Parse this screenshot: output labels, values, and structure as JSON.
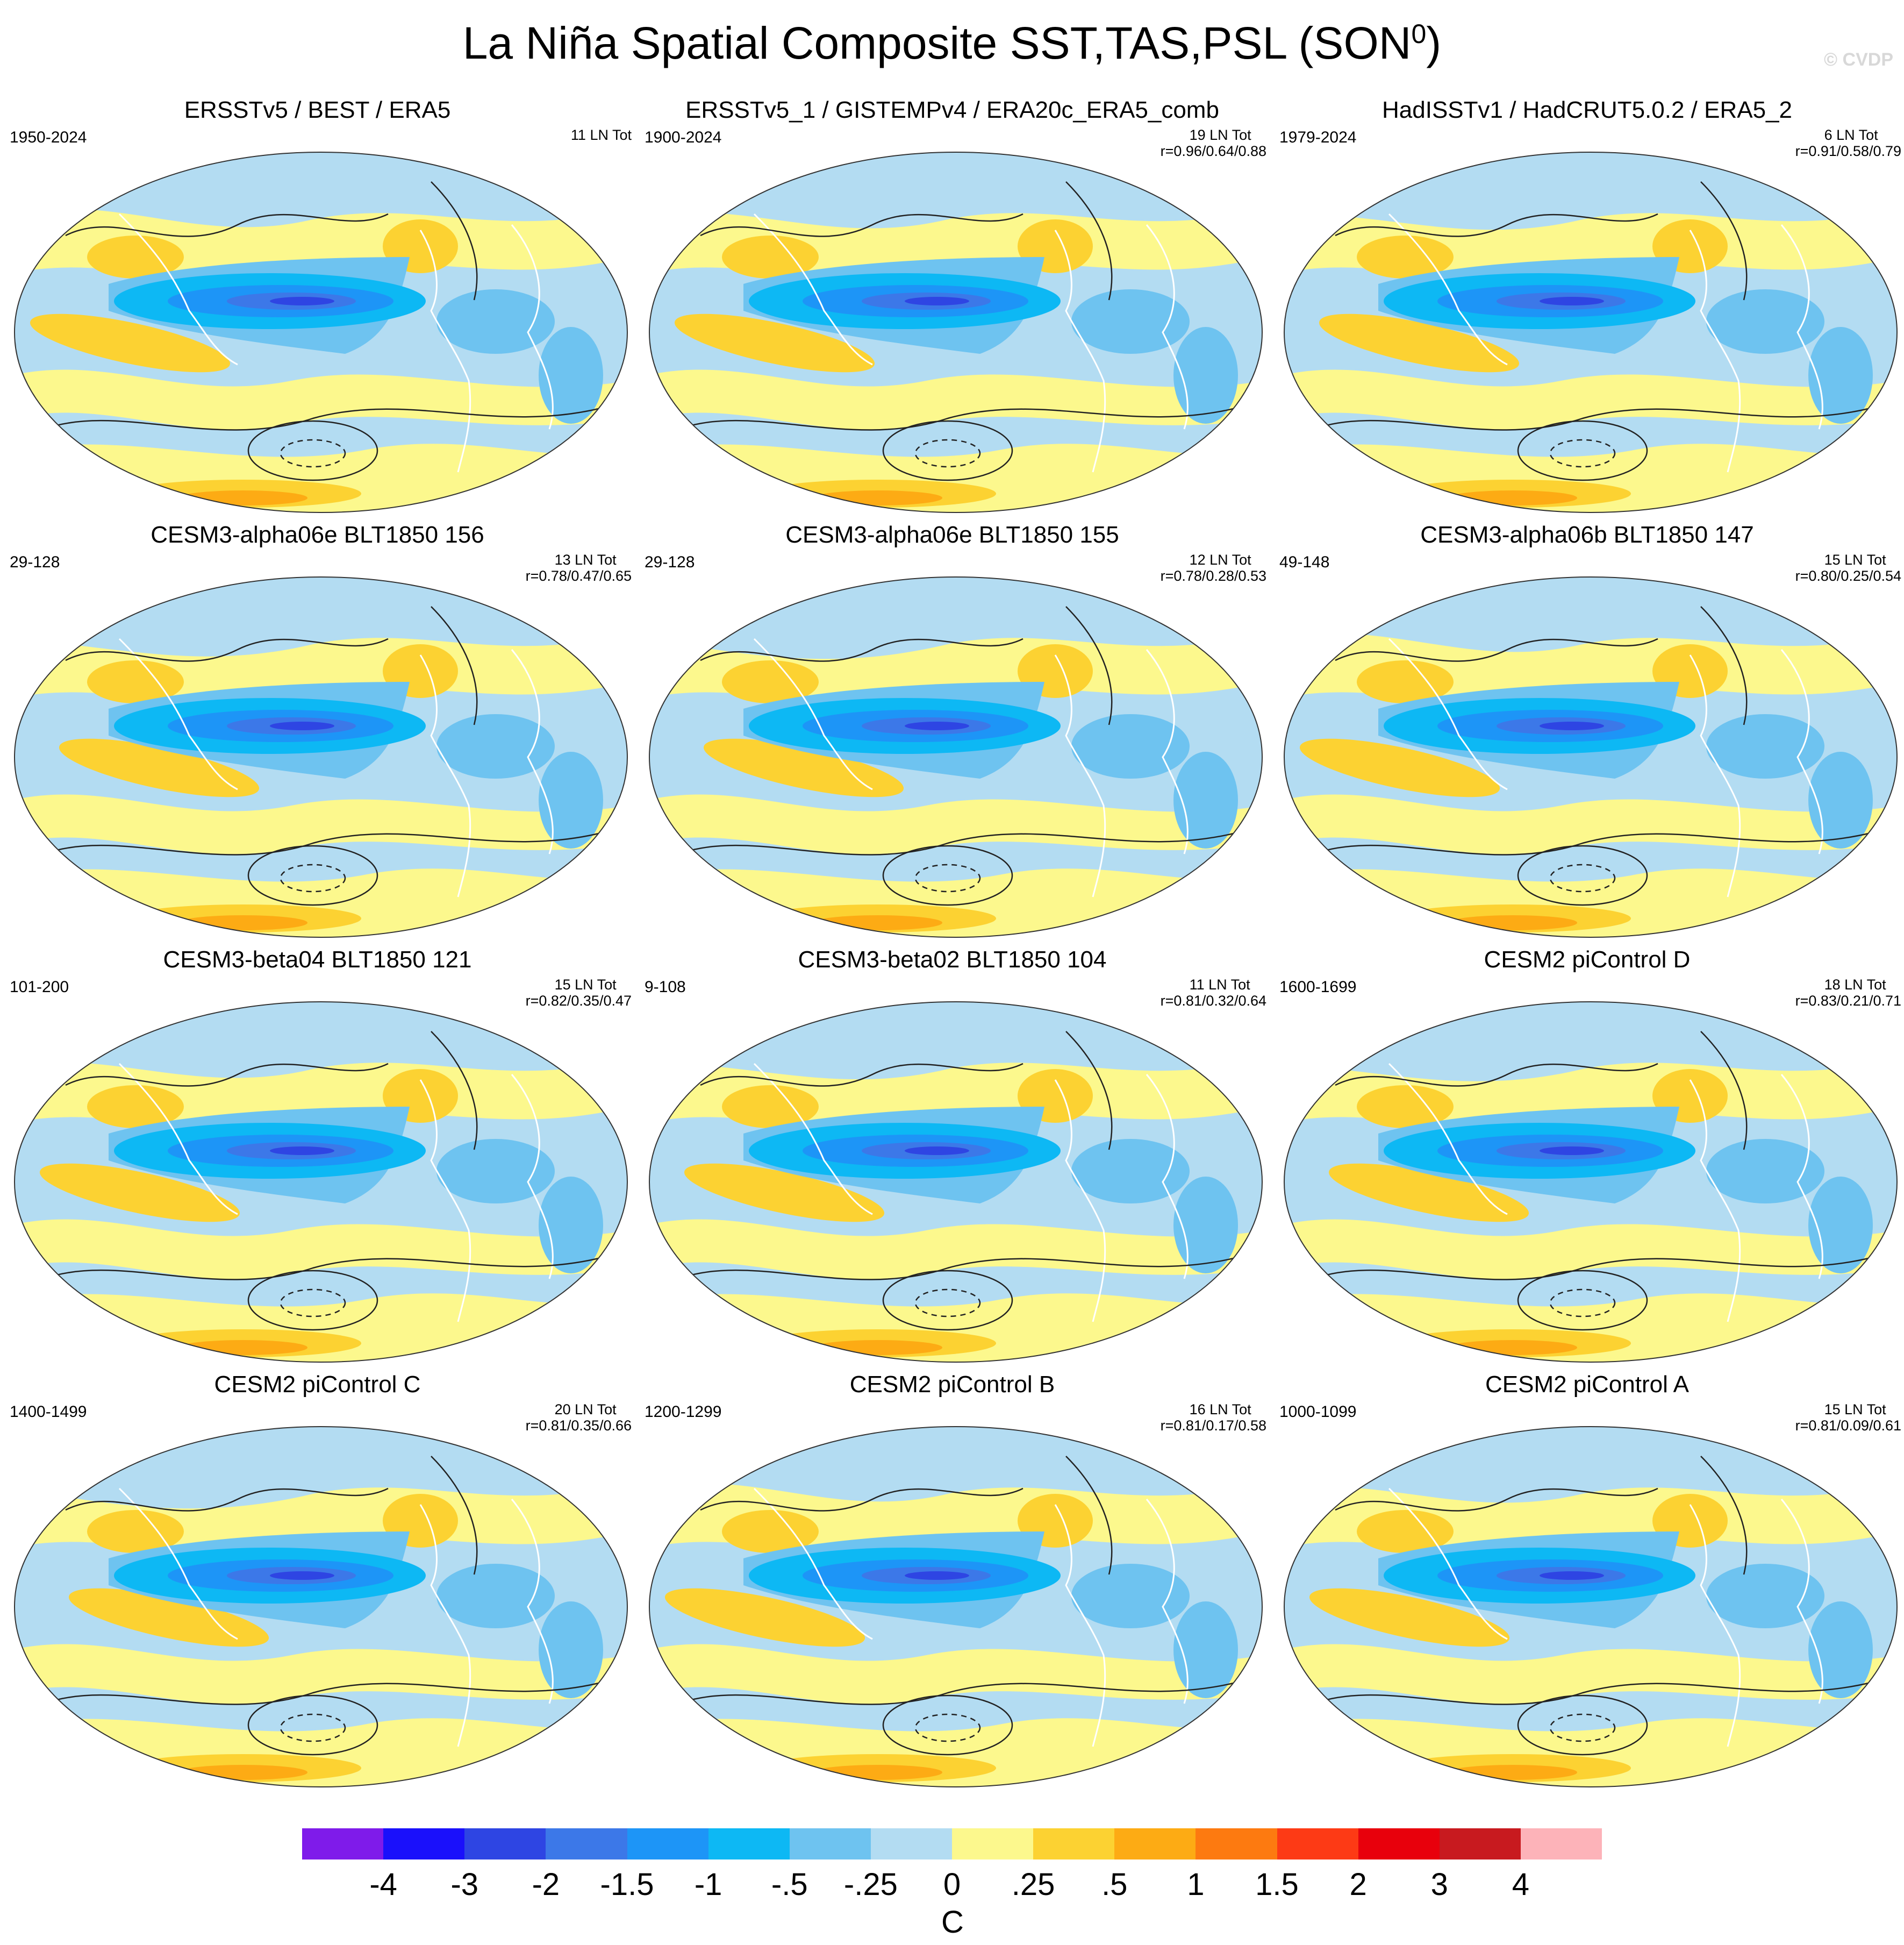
{
  "title": {
    "main": "La Niña Spatial Composite SST,TAS,PSL (SON",
    "superscript": "0",
    "close": ")"
  },
  "copyright": "© CVDP",
  "panels": [
    {
      "title": "ERSSTv5 / BEST / ERA5",
      "years": "1950-2024",
      "tot": "11 LN Tot",
      "r": ""
    },
    {
      "title": "ERSSTv5_1 / GISTEMPv4 / ERA20c_ERA5_comb",
      "years": "1900-2024",
      "tot": "19 LN Tot",
      "r": "r=0.96/0.64/0.88"
    },
    {
      "title": "HadISSTv1 / HadCRUT5.0.2 / ERA5_2",
      "years": "1979-2024",
      "tot": "6 LN Tot",
      "r": "r=0.91/0.58/0.79"
    },
    {
      "title": "CESM3-alpha06e BLT1850 156",
      "years": "29-128",
      "tot": "13 LN Tot",
      "r": "r=0.78/0.47/0.65"
    },
    {
      "title": "CESM3-alpha06e BLT1850 155",
      "years": "29-128",
      "tot": "12 LN Tot",
      "r": "r=0.78/0.28/0.53"
    },
    {
      "title": "CESM3-alpha06b BLT1850 147",
      "years": "49-148",
      "tot": "15 LN Tot",
      "r": "r=0.80/0.25/0.54"
    },
    {
      "title": "CESM3-beta04 BLT1850 121",
      "years": "101-200",
      "tot": "15 LN Tot",
      "r": "r=0.82/0.35/0.47"
    },
    {
      "title": "CESM3-beta02 BLT1850 104",
      "years": "9-108",
      "tot": "11 LN Tot",
      "r": "r=0.81/0.32/0.64"
    },
    {
      "title": "CESM2 piControl D",
      "years": "1600-1699",
      "tot": "18 LN Tot",
      "r": "r=0.83/0.21/0.71"
    },
    {
      "title": "CESM2 piControl C",
      "years": "1400-1499",
      "tot": "20 LN Tot",
      "r": "r=0.81/0.35/0.66"
    },
    {
      "title": "CESM2 piControl B",
      "years": "1200-1299",
      "tot": "16 LN Tot",
      "r": "r=0.81/0.17/0.58"
    },
    {
      "title": "CESM2 piControl A",
      "years": "1000-1099",
      "tot": "15 LN Tot",
      "r": "r=0.81/0.09/0.61"
    }
  ],
  "colorbar": {
    "colors": [
      "#7f1bea",
      "#1a10fb",
      "#2e45e3",
      "#3c78e8",
      "#1d95f7",
      "#0db8f4",
      "#6ec3f0",
      "#b3dcf2",
      "#fcf88d",
      "#fcd232",
      "#fdab14",
      "#fd7a10",
      "#fd3a15",
      "#e8000c",
      "#c81a1f",
      "#fdb3b9"
    ],
    "labels": [
      "-4",
      "-3",
      "-2",
      "-1.5",
      "-1",
      "-.5",
      "-.25",
      "0",
      ".25",
      ".5",
      "1",
      "1.5",
      "2",
      "3",
      "4"
    ],
    "units": "C"
  }
}
